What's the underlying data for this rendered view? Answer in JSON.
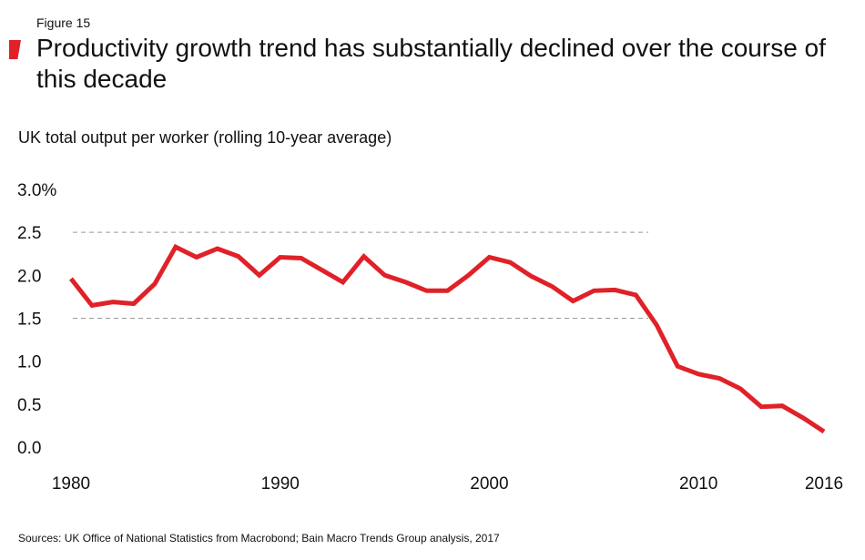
{
  "figure_label": "Figure 15",
  "title": "Productivity growth trend has substantially declined over the course of this decade",
  "source": "Sources: UK Office of National Statistics from Macrobond; Bain Macro Trends Group analysis, 2017",
  "colors": {
    "line": "#e02128",
    "accent": "#e02128",
    "gridline": "#999999"
  },
  "chart_data": {
    "type": "line",
    "title": "Productivity growth trend has substantially declined over the course of this decade",
    "ylabel": "UK total output per worker (rolling 10-year average)",
    "xlabel": "",
    "xlim": [
      1980,
      2016
    ],
    "ylim": [
      0,
      3.0
    ],
    "x_ticks": [
      1980,
      1990,
      2000,
      2010,
      2016
    ],
    "y_ticks": [
      {
        "value": 0.0,
        "label": "0.0"
      },
      {
        "value": 0.5,
        "label": "0.5"
      },
      {
        "value": 1.0,
        "label": "1.0"
      },
      {
        "value": 1.5,
        "label": "1.5"
      },
      {
        "value": 2.0,
        "label": "2.0"
      },
      {
        "value": 2.5,
        "label": "2.5"
      },
      {
        "value": 3.0,
        "label": "3.0%"
      }
    ],
    "dashed_gridlines": [
      1.5,
      2.5
    ],
    "series": [
      {
        "name": "UK total output per worker (rolling 10-year average)",
        "x": [
          1980.0,
          1981.0,
          1982.0,
          1983.0,
          1984.0,
          1985.0,
          1986.0,
          1987.0,
          1988.0,
          1989.0,
          1990.0,
          1991.0,
          1992.0,
          1993.0,
          1994.0,
          1995.0,
          1996.0,
          1997.0,
          1998.0,
          1999.0,
          2000.0,
          2001.0,
          2002.0,
          2003.0,
          2004.0,
          2005.0,
          2006.0,
          2007.0,
          2008.0,
          2009.0,
          2010.0,
          2011.0,
          2012.0,
          2013.0,
          2014.0,
          2015.0,
          2016.0
        ],
        "values": [
          1.96,
          1.65,
          1.69,
          1.67,
          1.9,
          2.33,
          2.21,
          2.31,
          2.22,
          2.0,
          2.21,
          2.2,
          2.06,
          1.92,
          2.22,
          2.0,
          1.92,
          1.82,
          1.82,
          2.0,
          2.21,
          2.15,
          1.99,
          1.87,
          1.7,
          1.82,
          1.83,
          1.77,
          1.42,
          0.94,
          0.85,
          0.8,
          0.68,
          0.47,
          0.48,
          0.34,
          0.18
        ]
      }
    ]
  }
}
